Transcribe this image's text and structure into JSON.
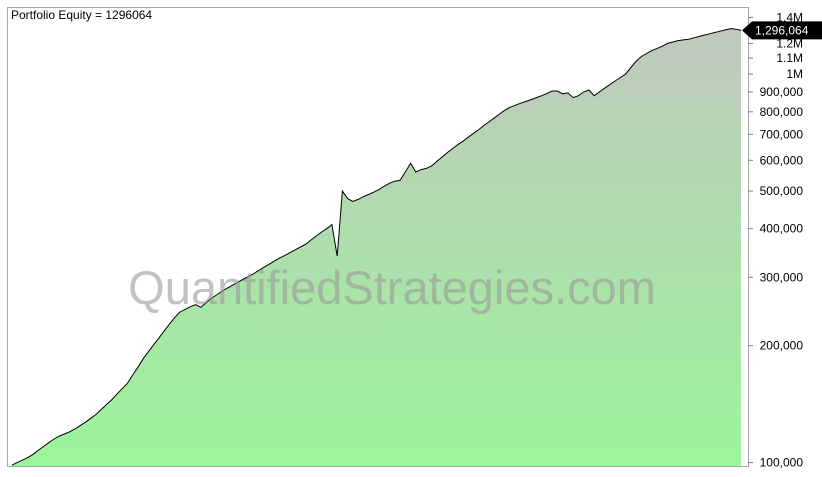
{
  "chart_data": {
    "type": "area",
    "title": "Portfolio Equity = 1296064",
    "watermark": "QuantifiedStrategies.com",
    "y_scale": "log",
    "ylim": [
      98000,
      1480000
    ],
    "y_ticks": [
      {
        "value": 100000,
        "label": "100,000"
      },
      {
        "value": 200000,
        "label": "200,000"
      },
      {
        "value": 300000,
        "label": "300,000"
      },
      {
        "value": 400000,
        "label": "400,000"
      },
      {
        "value": 500000,
        "label": "500,000"
      },
      {
        "value": 600000,
        "label": "600,000"
      },
      {
        "value": 700000,
        "label": "700,000"
      },
      {
        "value": 800000,
        "label": "800,000"
      },
      {
        "value": 900000,
        "label": "900,000"
      },
      {
        "value": 1000000,
        "label": "1M"
      },
      {
        "value": 1100000,
        "label": "1.1M"
      },
      {
        "value": 1200000,
        "label": "1.2M"
      },
      {
        "value": 1400000,
        "label": "1.4M"
      }
    ],
    "last_value": 1296064,
    "last_value_label": "1,296,064",
    "grid": false,
    "colors": {
      "fill_top": "#c0c8bd",
      "fill_bottom": "#9bf59b",
      "line": "#000000",
      "marker_bg": "#000000",
      "marker_text": "#ffffff",
      "watermark": "#9a9a9a"
    },
    "series": [
      {
        "values": [
          98500,
          100000,
          101500,
          103000,
          105000,
          107500,
          110000,
          112500,
          115000,
          117000,
          118500,
          120000,
          122000,
          124500,
          127000,
          130000,
          133000,
          137000,
          141000,
          145000,
          150000,
          155000,
          160000,
          168000,
          176000,
          185000,
          193000,
          201000,
          209000,
          218000,
          227000,
          236000,
          244000,
          248000,
          252000,
          255000,
          251000,
          258000,
          265000,
          270000,
          276000,
          281000,
          286000,
          291000,
          296000,
          301000,
          306000,
          312000,
          318000,
          324000,
          330000,
          336000,
          341000,
          347000,
          353000,
          359000,
          365000,
          374000,
          383000,
          392000,
          400000,
          410000,
          340000,
          500000,
          478000,
          470000,
          476000,
          484000,
          490000,
          497000,
          505000,
          515000,
          524000,
          530000,
          533000,
          560000,
          590000,
          560000,
          568000,
          572000,
          580000,
          596000,
          612000,
          628000,
          643000,
          658000,
          672000,
          688000,
          704000,
          720000,
          738000,
          755000,
          772000,
          790000,
          808000,
          822000,
          832000,
          842000,
          851000,
          860000,
          870000,
          880000,
          892000,
          905000,
          905000,
          890000,
          895000,
          870000,
          880000,
          900000,
          910000,
          880000,
          900000,
          920000,
          940000,
          960000,
          980000,
          1000000,
          1040000,
          1080000,
          1110000,
          1130000,
          1150000,
          1165000,
          1180000,
          1200000,
          1210000,
          1220000,
          1225000,
          1230000,
          1240000,
          1250000,
          1260000,
          1270000,
          1280000,
          1290000,
          1300000,
          1310000,
          1305000,
          1296064
        ]
      }
    ]
  }
}
